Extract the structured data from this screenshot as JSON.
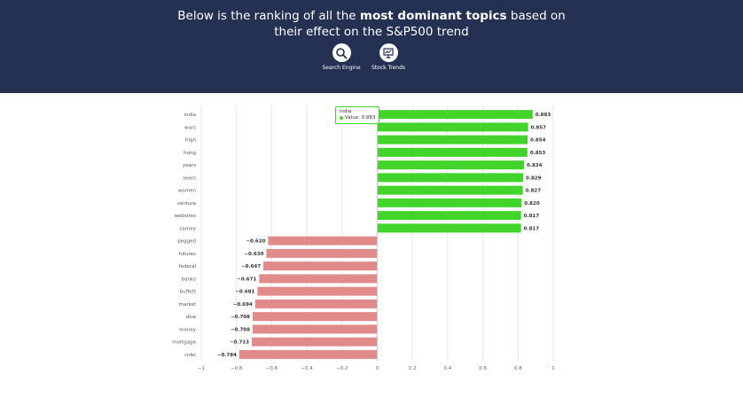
{
  "header": {
    "headline_pre": "Below is the ranking of all the ",
    "headline_bold": "most dominant topics",
    "headline_post": " based on",
    "headline_line2": "their effect on the S&P500 trend",
    "nav": [
      {
        "label": "Search Engine",
        "icon": "search-icon"
      },
      {
        "label": "Stock Trends",
        "icon": "stock-trends-icon"
      }
    ]
  },
  "tooltip": {
    "title": "india",
    "text": "Value: 0.883"
  },
  "colors": {
    "positive": "#42d42a",
    "negative": "#e08a8a",
    "header_bg": "#243153"
  },
  "chart_data": {
    "type": "bar",
    "orientation": "horizontal",
    "categories": [
      "india",
      "wars",
      "high",
      "hong",
      "years",
      "seers",
      "women",
      "ventura",
      "websites",
      "carney",
      "pegged",
      "futures",
      "federal",
      "banks",
      "buffett",
      "market",
      "dow",
      "money",
      "mortgage",
      "cnbc"
    ],
    "values": [
      0.883,
      0.857,
      0.854,
      0.853,
      0.834,
      0.829,
      0.827,
      0.82,
      0.817,
      0.817,
      -0.62,
      -0.63,
      -0.647,
      -0.671,
      -0.681,
      -0.694,
      -0.708,
      -0.708,
      -0.713,
      -0.784
    ],
    "value_labels": [
      "0.883",
      "0.857",
      "0.854",
      "0.853",
      "0.834",
      "0.829",
      "0.827",
      "0.820",
      "0.817",
      "0.817",
      "−0.620",
      "−0.630",
      "−0.647",
      "−0.671",
      "−0.681",
      "−0.694",
      "−0.708",
      "−0.708",
      "−0.713",
      "−0.784"
    ],
    "xlim": [
      -1,
      1
    ],
    "xticks": [
      -1,
      -0.8,
      -0.6,
      -0.4,
      -0.2,
      0,
      0.2,
      0.4,
      0.6,
      0.8,
      1
    ],
    "xtick_labels": [
      "−1",
      "−0.8",
      "−0.6",
      "−0.4",
      "−0.2",
      "0",
      "0.2",
      "0.4",
      "0.6",
      "0.8",
      "1"
    ],
    "grid": true,
    "title": "",
    "xlabel": "",
    "ylabel": ""
  }
}
